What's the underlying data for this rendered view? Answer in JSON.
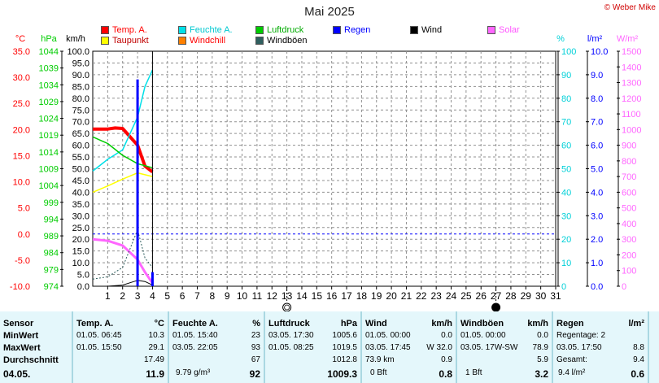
{
  "title": "Mai 2025",
  "copyright": "© Weber Mike",
  "colors": {
    "temp": "#ff0000",
    "humidity": "#00e0e8",
    "pressure": "#00cc00",
    "rain": "#0000ff",
    "wind": "#000000",
    "solar": "#ff66ff",
    "dewpoint": "#ffff00",
    "windchill": "#ff8000",
    "gust": "#2f5f5f",
    "table_bg": "#e4f7fb"
  },
  "legend": [
    {
      "key": "temp",
      "label": "Temp. A.",
      "color": "#ff0000"
    },
    {
      "key": "humidity",
      "label": "Feuchte A.",
      "color": "#00e0e8"
    },
    {
      "key": "pressure",
      "label": "Luftdruck",
      "color": "#00cc00"
    },
    {
      "key": "rain",
      "label": "Regen",
      "color": "#0000ff"
    },
    {
      "key": "wind",
      "label": "Wind",
      "color": "#000000"
    },
    {
      "key": "solar",
      "label": "Solar",
      "color": "#ff66ff"
    },
    {
      "key": "dewpoint",
      "label": "Taupunkt",
      "color": "#ffff00"
    },
    {
      "key": "windchill",
      "label": "Windchill",
      "color": "#ff8000"
    },
    {
      "key": "gust",
      "label": "Windböen",
      "color": "#2f5f5f"
    }
  ],
  "chart_data": {
    "type": "line",
    "x_label_days": [
      "1",
      "2",
      "3",
      "4",
      "5",
      "6",
      "7",
      "8",
      "9",
      "10",
      "11",
      "12",
      "13",
      "14",
      "15",
      "16",
      "17",
      "18",
      "19",
      "20",
      "21",
      "22",
      "23",
      "24",
      "25",
      "26",
      "27",
      "28",
      "29",
      "30",
      "31"
    ],
    "xlim": [
      0,
      31
    ],
    "axes": {
      "temp": {
        "unit": "°C",
        "min": -10,
        "max": 35,
        "ticks": [
          "35.0",
          "30.0",
          "25.0",
          "20.0",
          "15.0",
          "10.0",
          "5.0",
          "0.0",
          "-5.0",
          "-10.0"
        ]
      },
      "pressure": {
        "unit": "hPa",
        "min": 974,
        "max": 1044,
        "ticks": [
          "1044",
          "1039",
          "1034",
          "1029",
          "1024",
          "1019",
          "1014",
          "1009",
          "1004",
          "999",
          "994",
          "989",
          "984",
          "979",
          "974"
        ]
      },
      "wind": {
        "unit": "km/h",
        "min": 0,
        "max": 100,
        "ticks": [
          "100.0",
          "95.0",
          "90.0",
          "85.0",
          "80.0",
          "75.0",
          "70.0",
          "65.0",
          "60.0",
          "55.0",
          "50.0",
          "45.0",
          "40.0",
          "35.0",
          "30.0",
          "25.0",
          "20.0",
          "15.0",
          "10.0",
          "5.0",
          "0.0"
        ]
      },
      "humidity": {
        "unit": "%",
        "min": 0,
        "max": 100,
        "ticks": [
          "100",
          "90",
          "80",
          "70",
          "60",
          "50",
          "40",
          "30",
          "20",
          "10",
          "0"
        ]
      },
      "rain": {
        "unit": "l/m²",
        "min": 0,
        "max": 10,
        "ticks": [
          "10.0",
          "9.0",
          "8.0",
          "7.0",
          "6.0",
          "5.0",
          "4.0",
          "3.0",
          "2.0",
          "1.0",
          "0.0"
        ]
      },
      "solar": {
        "unit": "W/m²",
        "min": 0,
        "max": 1500,
        "ticks": [
          "1500",
          "1400",
          "1300",
          "1200",
          "1100",
          "1000",
          "900",
          "800",
          "700",
          "600",
          "500",
          "400",
          "300",
          "200",
          "100",
          "0"
        ]
      }
    },
    "series": [
      {
        "name": "Temp. A.",
        "key": "temp",
        "axis": "temp",
        "width": 4,
        "points": [
          [
            0,
            20.1
          ],
          [
            1,
            20.1
          ],
          [
            1.5,
            20.3
          ],
          [
            2,
            20.2
          ],
          [
            3,
            17.0
          ],
          [
            3.5,
            13.0
          ],
          [
            4,
            11.9
          ]
        ]
      },
      {
        "name": "Feuchte A.",
        "key": "humidity",
        "axis": "humidity",
        "width": 1.5,
        "points": [
          [
            0,
            49
          ],
          [
            1,
            54
          ],
          [
            2,
            58
          ],
          [
            3,
            72
          ],
          [
            3.5,
            85
          ],
          [
            4,
            92
          ]
        ]
      },
      {
        "name": "Luftdruck",
        "key": "pressure",
        "axis": "pressure",
        "width": 1.5,
        "points": [
          [
            0,
            1018.5
          ],
          [
            1,
            1016.5
          ],
          [
            2,
            1013
          ],
          [
            3,
            1010.5
          ],
          [
            4,
            1009.3
          ]
        ]
      },
      {
        "name": "Taupunkt",
        "key": "dewpoint",
        "axis": "temp",
        "width": 1.5,
        "points": [
          [
            0,
            8.0
          ],
          [
            1,
            9.2
          ],
          [
            2,
            10.5
          ],
          [
            3,
            11.7
          ],
          [
            4,
            11.0
          ]
        ]
      },
      {
        "name": "Solar",
        "key": "solar",
        "axis": "solar",
        "width": 3,
        "points": [
          [
            0,
            300
          ],
          [
            1,
            290
          ],
          [
            2,
            260
          ],
          [
            3,
            170
          ],
          [
            3.5,
            90
          ],
          [
            4,
            20
          ]
        ]
      },
      {
        "name": "Wind",
        "key": "wind",
        "axis": "wind",
        "width": 1,
        "points": [
          [
            0,
            0
          ],
          [
            1,
            0
          ],
          [
            2,
            0.5
          ],
          [
            2.5,
            1.5
          ],
          [
            3,
            2.5
          ],
          [
            3.5,
            2
          ],
          [
            4,
            0.5
          ]
        ]
      },
      {
        "name": "Windböen",
        "key": "gust",
        "axis": "wind",
        "width": 1,
        "dashed": true,
        "points": [
          [
            0,
            3
          ],
          [
            1,
            4
          ],
          [
            2,
            8
          ],
          [
            2.5,
            16
          ],
          [
            3,
            24
          ],
          [
            3.5,
            12
          ],
          [
            4,
            8
          ]
        ]
      }
    ],
    "rain_bars": [
      {
        "day": 3,
        "value": 8.8
      },
      {
        "day": 4,
        "value": 0.6
      }
    ],
    "freezing_line": {
      "axis": "temp",
      "value": 0.0
    },
    "moon_markers": [
      {
        "day": 13,
        "phase": "full"
      },
      {
        "day": 27,
        "phase": "new"
      }
    ]
  },
  "table": {
    "sensor": {
      "header": "Sensor",
      "rows": [
        "MinWert",
        "MaxWert",
        "Durchschnitt"
      ],
      "date": "04.05."
    },
    "temp": {
      "header": "Temp. A.",
      "unit": "°C",
      "min": {
        "date": "01.05.",
        "time": "06:45",
        "value": "10.3"
      },
      "max": {
        "date": "01.05.",
        "time": "15:50",
        "value": "29.1"
      },
      "avg": "17.49",
      "current": "11.9"
    },
    "humidity": {
      "header": "Feuchte A.",
      "unit": "%",
      "min": {
        "date": "01.05.",
        "time": "15:40",
        "value": "23"
      },
      "max": {
        "date": "03.05.",
        "time": "22:05",
        "value": "93"
      },
      "avg": "67",
      "extra": "9.79 g/m³",
      "current": "92"
    },
    "pressure": {
      "header": "Luftdruck",
      "unit": "hPa",
      "min": {
        "date": "03.05.",
        "time": "17:30",
        "value": "1005.6"
      },
      "max": {
        "date": "01.05.",
        "time": "08:25",
        "value": "1019.5"
      },
      "avg": "1012.8",
      "current": "1009.3"
    },
    "wind": {
      "header": "Wind",
      "unit": "km/h",
      "min": {
        "date": "01.05.",
        "time": "00:00",
        "value": "0.0"
      },
      "max": {
        "date": "03.05.",
        "time": "17:45",
        "dir": "W",
        "value": "32.0"
      },
      "total": "73.9 km",
      "avg": "0.9",
      "bft": "0 Bft",
      "current": "0.8"
    },
    "gust": {
      "header": "Windböen",
      "unit": "km/h",
      "min": {
        "date": "01.05.",
        "time": "00:00",
        "value": "0.0"
      },
      "max": {
        "date": "03.05.",
        "dir": "17W-SW",
        "value": "78.9"
      },
      "avg": "5.9",
      "bft": "1 Bft",
      "current": "3.2"
    },
    "rain": {
      "header": "Regen",
      "unit": "l/m²",
      "days_label": "Regentage: 2",
      "max": {
        "date": "03.05.",
        "time": "17:50",
        "value": "8.8"
      },
      "total_label": "Gesamt:",
      "total": "9.4",
      "extra": "9.4 l/m²",
      "current": "0.6"
    }
  }
}
